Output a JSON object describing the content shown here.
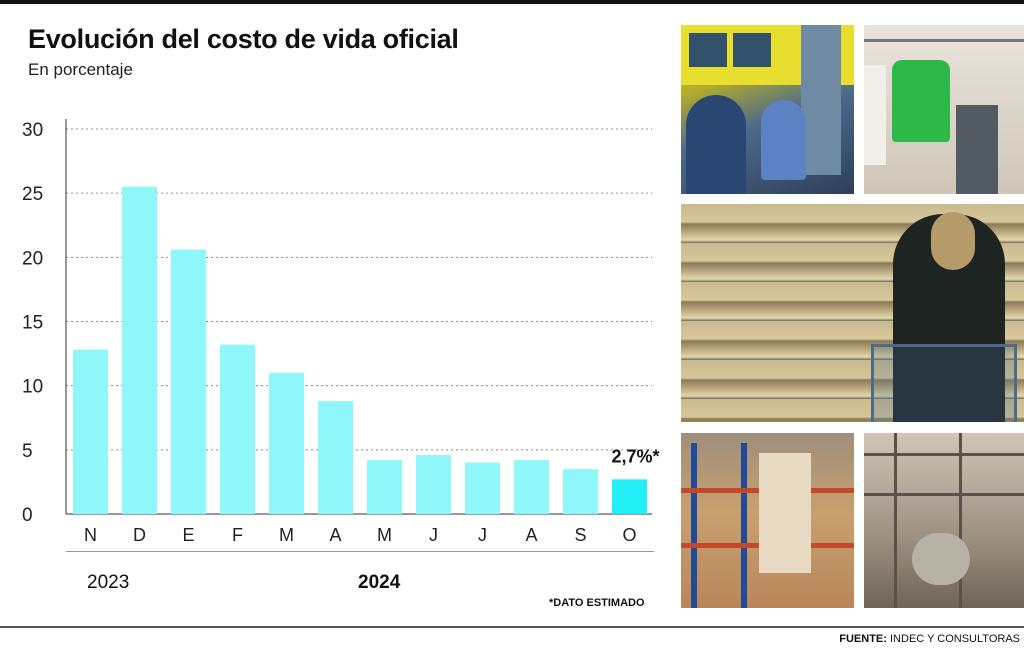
{
  "header": {
    "title": "Evolución del costo de vida oficial",
    "subtitle": "En porcentaje"
  },
  "chart_data": {
    "type": "bar",
    "title": "Evolución del costo de vida oficial",
    "subtitle": "En porcentaje",
    "xlabel": "",
    "ylabel": "",
    "categories": [
      "N",
      "D",
      "E",
      "F",
      "M",
      "A",
      "M",
      "J",
      "J",
      "A",
      "S",
      "O"
    ],
    "values": [
      12.8,
      25.5,
      20.6,
      13.2,
      11.0,
      8.8,
      4.2,
      4.6,
      4.0,
      4.2,
      3.5,
      2.7
    ],
    "highlight_index": 11,
    "highlight_label": "2,7%*",
    "ylim": [
      0,
      30
    ],
    "yticks": [
      0,
      5,
      10,
      15,
      20,
      25,
      30
    ],
    "grid": true,
    "bar_color": "#8ff7fa",
    "highlight_color": "#22eef5",
    "year_groups": [
      {
        "label": "2023",
        "start": 0,
        "end": 1
      },
      {
        "label": "2024",
        "start": 2,
        "end": 11
      }
    ]
  },
  "footer": {
    "note": "*DATO ESTIMADO",
    "source_label": "FUENTE:",
    "source_text": "INDEC Y CONSULTORAS"
  },
  "photos": [
    {
      "icon": "bus-passengers-photo"
    },
    {
      "icon": "clothing-rack-photo"
    },
    {
      "icon": "supermarket-shopper-photo"
    },
    {
      "icon": "warehouse-shelves-photo"
    },
    {
      "icon": "construction-site-photo"
    }
  ]
}
